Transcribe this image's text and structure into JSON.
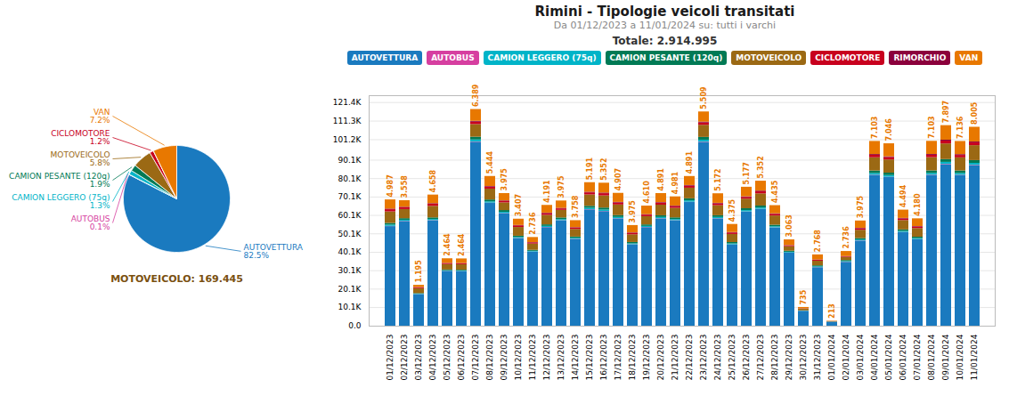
{
  "chart_data": [
    {
      "type": "pie",
      "categories": [
        "AUTOVETTURA",
        "AUTOBUS",
        "CAMION LEGGERO (75q)",
        "CAMION PESANTE (120q)",
        "MOTOVEICOLO",
        "CICLOMOTORE",
        "RIMORCHIO",
        "VAN"
      ],
      "values": [
        82.5,
        0.1,
        1.3,
        1.9,
        5.8,
        1.2,
        0.0,
        7.2
      ],
      "value_labels": [
        "82.5%",
        "0.1%",
        "1.3%",
        "1.9%",
        "5.8%",
        "1.2%",
        null,
        "7.2%"
      ],
      "colors": [
        "#1a7abf",
        "#d63fa0",
        "#00b4c8",
        "#007a55",
        "#9b6914",
        "#c8001e",
        "#8b003c",
        "#e87800"
      ],
      "data_labels": true,
      "annotations": [
        "MOTOVEICOLO: 169.445"
      ]
    },
    {
      "type": "bar",
      "title": "Rimini - Tipologie veicoli transitati",
      "subtitle": "Da 01/12/2023 a 11/01/2024 su: tutti i varchi",
      "annotations": [
        "Totale: 2.914.995"
      ],
      "stacked": true,
      "grid": true,
      "legend": "top",
      "categories": [
        "01/12/2023",
        "02/12/2023",
        "03/12/2023",
        "04/12/2023",
        "05/12/2023",
        "06/12/2023",
        "07/12/2023",
        "08/12/2023",
        "09/12/2023",
        "10/12/2023",
        "11/12/2023",
        "12/12/2023",
        "13/12/2023",
        "14/12/2023",
        "15/12/2023",
        "16/12/2023",
        "17/12/2023",
        "18/12/2023",
        "19/12/2023",
        "20/12/2023",
        "21/12/2023",
        "22/12/2023",
        "23/12/2023",
        "24/12/2023",
        "25/12/2023",
        "26/12/2023",
        "27/12/2023",
        "28/12/2023",
        "29/12/2023",
        "30/12/2023",
        "31/12/2023",
        "01/01/2024",
        "02/01/2024",
        "03/01/2024",
        "04/01/2024",
        "05/01/2024",
        "06/01/2024",
        "07/01/2024",
        "08/01/2024",
        "09/01/2024",
        "10/01/2024",
        "11/01/2024"
      ],
      "series": [
        {
          "name": "AUTOVETTURA",
          "color": "#1a7abf",
          "values": [
            54042,
            56779,
            17085,
            57194,
            29722,
            29640,
            99835,
            66646,
            61061,
            47544,
            40175,
            53488,
            57138,
            47128,
            63125,
            62185,
            58215,
            44103,
            53483,
            58213,
            57128,
            67128,
            99721,
            58215,
            44015,
            61895,
            63289,
            53280,
            39636,
            8075,
            31738,
            2190,
            34636,
            46153,
            81735,
            80651,
            50704,
            46853,
            81782,
            87657,
            81738,
            87114
          ]
        },
        {
          "name": "AUTOBUS",
          "color": "#d63fa0",
          "values": [
            150,
            130,
            80,
            130,
            80,
            80,
            200,
            150,
            130,
            100,
            90,
            120,
            130,
            100,
            140,
            140,
            130,
            110,
            120,
            130,
            130,
            150,
            200,
            130,
            110,
            130,
            140,
            110,
            90,
            20,
            80,
            10,
            90,
            120,
            200,
            190,
            140,
            130,
            200,
            220,
            200,
            220
          ]
        },
        {
          "name": "CAMION LEGGERO (75q)",
          "color": "#00b4c8",
          "values": [
            680,
            600,
            220,
            600,
            280,
            280,
            1050,
            700,
            650,
            480,
            380,
            560,
            600,
            480,
            740,
            740,
            680,
            500,
            560,
            650,
            630,
            760,
            1050,
            660,
            530,
            720,
            740,
            580,
            400,
            100,
            380,
            30,
            380,
            540,
            950,
            920,
            580,
            540,
            950,
            1050,
            950,
            1050
          ]
        },
        {
          "name": "CAMION PESANTE (120q)",
          "color": "#007a55",
          "values": [
            900,
            850,
            310,
            850,
            400,
            400,
            1500,
            1000,
            920,
            700,
            540,
            830,
            880,
            680,
            1060,
            1060,
            980,
            720,
            800,
            930,
            900,
            1090,
            1490,
            940,
            760,
            1020,
            1050,
            840,
            580,
            140,
            550,
            40,
            540,
            780,
            1350,
            1320,
            840,
            780,
            1350,
            1500,
            1350,
            1500
          ]
        },
        {
          "name": "MOTOVEICOLO",
          "color": "#9b6914",
          "values": [
            6258,
            4958,
            2689,
            6278,
            2967,
            2964,
            6851,
            5908,
            4181,
            4754,
            3407,
            5152,
            4131,
            4146,
            6174,
            6583,
            5777,
            4181,
            4483,
            5777,
            5174,
            5777,
            6583,
            5444,
            4375,
            5191,
            6583,
            5003,
            2444,
            887,
            2537,
            170,
            1675,
            4463,
            7182,
            7152,
            5048,
            4682,
            7189,
            8487,
            7134,
            8105
          ]
        },
        {
          "name": "CICLOMOTORE",
          "color": "#c8001e",
          "values": [
            1198,
            950,
            495,
            1178,
            547,
            547,
            1299,
            1087,
            771,
            875,
            630,
            950,
            804,
            762,
            1134,
            1209,
            1097,
            804,
            869,
            1097,
            950,
            1097,
            1244,
            1003,
            808,
            950,
            1209,
            919,
            449,
            163,
            466,
            31,
            308,
            820,
            1319,
            1298,
            927,
            860,
            1321,
            1558,
            1311,
            1488
          ]
        },
        {
          "name": "RIMORCHIO",
          "color": "#8b003c",
          "values": [
            320,
            285,
            98,
            285,
            130,
            130,
            480,
            320,
            295,
            220,
            170,
            265,
            285,
            215,
            325,
            335,
            310,
            230,
            255,
            295,
            285,
            350,
            480,
            305,
            245,
            325,
            335,
            265,
            185,
            45,
            175,
            12,
            170,
            245,
            430,
            420,
            265,
            245,
            430,
            480,
            430,
            480
          ]
        },
        {
          "name": "VAN",
          "color": "#e87800",
          "values": [
            4987,
            3558,
            1195,
            4658,
            2464,
            2464,
            6389,
            5444,
            3975,
            3407,
            2736,
            4191,
            3975,
            3758,
            5191,
            5352,
            4907,
            3975,
            4610,
            4891,
            4981,
            4891,
            5509,
            5172,
            4375,
            5177,
            5352,
            4435,
            3063,
            735,
            2768,
            213,
            2736,
            3975,
            7103,
            7046,
            4494,
            4180,
            7103,
            7897,
            7136,
            8005
          ],
          "data_labels": true,
          "value_labels": [
            "4.987",
            "3.558",
            "1.195",
            "4.658",
            "2.464",
            "2.464",
            "6.389",
            "5.444",
            "3.975",
            "3.407",
            "2.736",
            "4.191",
            "3.975",
            "3.758",
            "5.191",
            "5.352",
            "4.907",
            "3.975",
            "4.610",
            "4.891",
            "4.981",
            "4.891",
            "5.509",
            "5.172",
            "4.375",
            "5.177",
            "5.352",
            "4.435",
            "3.063",
            "735",
            "2.768",
            "213",
            "2.736",
            "3.975",
            "7.103",
            "7.046",
            "4.494",
            "4.180",
            "7.103",
            "7.897",
            "7.136",
            "8.005"
          ]
        }
      ],
      "ylim": [
        0,
        125100
      ],
      "yticks": [
        {
          "value": 0,
          "label": "0.0"
        },
        {
          "value": 10100,
          "label": "10.1K"
        },
        {
          "value": 20100,
          "label": "20.1K"
        },
        {
          "value": 30100,
          "label": "30.1K"
        },
        {
          "value": 40100,
          "label": "40.1K"
        },
        {
          "value": 50100,
          "label": "50.1K"
        },
        {
          "value": 60100,
          "label": "60.1K"
        },
        {
          "value": 70100,
          "label": "70.1K"
        },
        {
          "value": 80100,
          "label": "80.1K"
        },
        {
          "value": 90100,
          "label": "90.1K"
        },
        {
          "value": 101200,
          "label": "101.2K"
        },
        {
          "value": 111300,
          "label": "111.3K"
        },
        {
          "value": 121400,
          "label": "121.4K"
        }
      ]
    }
  ]
}
